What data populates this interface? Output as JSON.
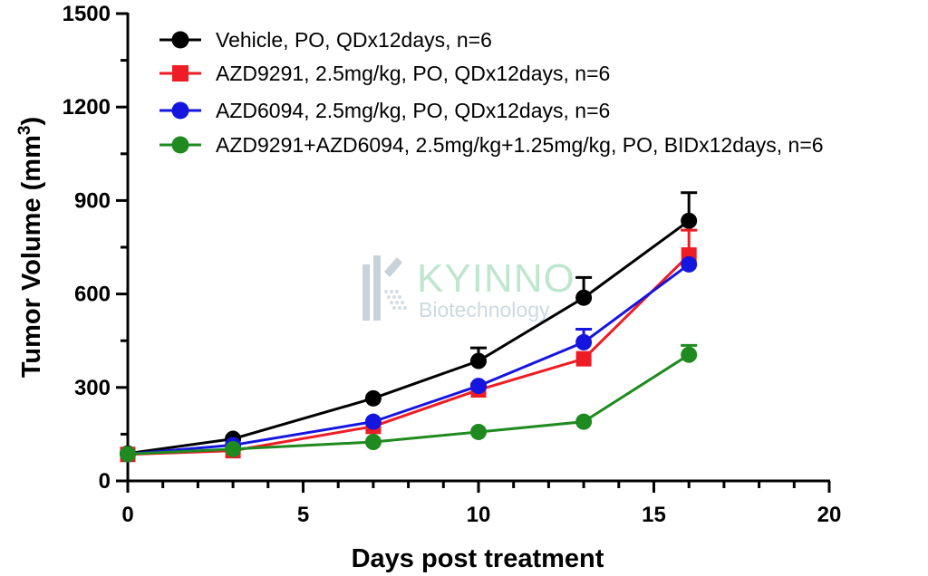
{
  "watermark": {
    "line1": "KYINNO",
    "line2": "Biotechnology"
  },
  "chart_data": {
    "type": "line",
    "title": "",
    "xlabel": "Days post treatment",
    "ylabel": "Tumor Volume (mm",
    "ylabel_superscript": "3",
    "ylabel_suffix": ")",
    "xlim": [
      0,
      20
    ],
    "ylim": [
      0,
      1500
    ],
    "xticks": [
      0,
      5,
      10,
      15,
      20
    ],
    "yticks": [
      0,
      300,
      600,
      900,
      1200,
      1500
    ],
    "x_minor_step": 1,
    "y_minor_step": 150,
    "grid": false,
    "legend_position": "top-left",
    "series": [
      {
        "name": "Vehicle, PO, QDx12days, n=6",
        "color": "#000000",
        "marker": "circle",
        "x": [
          0,
          3,
          7,
          10,
          13,
          16
        ],
        "y": [
          88,
          135,
          265,
          385,
          588,
          835
        ],
        "error": [
          0,
          0,
          0,
          42,
          65,
          90
        ]
      },
      {
        "name": "AZD9291, 2.5mg/kg, PO, QDx12days, n=6",
        "color": "#ee1c24",
        "marker": "square",
        "x": [
          0,
          3,
          7,
          10,
          13,
          16
        ],
        "y": [
          85,
          97,
          175,
          292,
          392,
          725
        ],
        "error": [
          0,
          0,
          0,
          18,
          0,
          80
        ]
      },
      {
        "name": "AZD6094, 2.5mg/kg, PO, QDx12days, n=6",
        "color": "#1515e0",
        "marker": "circle",
        "x": [
          0,
          3,
          7,
          10,
          13,
          16
        ],
        "y": [
          86,
          115,
          190,
          305,
          445,
          695
        ],
        "error": [
          0,
          0,
          0,
          0,
          42,
          0
        ]
      },
      {
        "name": "AZD9291+AZD6094, 2.5mg/kg+1.25mg/kg, PO, BIDx12days, n=6",
        "color": "#1f8a1f",
        "marker": "circle",
        "x": [
          0,
          3,
          7,
          10,
          13,
          16
        ],
        "y": [
          86,
          102,
          125,
          157,
          190,
          405
        ],
        "error": [
          0,
          0,
          0,
          0,
          0,
          30
        ]
      }
    ]
  }
}
